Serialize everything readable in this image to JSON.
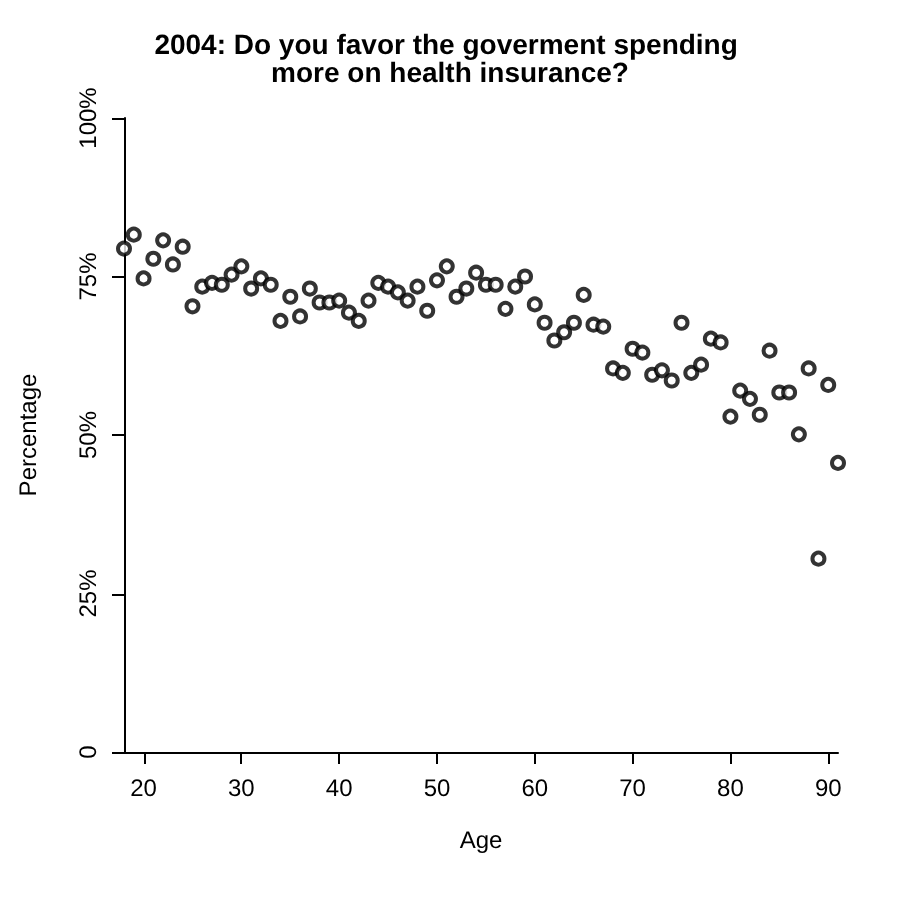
{
  "chart_data": {
    "type": "scatter",
    "title": "2004: Do you favor the goverment spending more on health insurance?",
    "xlabel": "Age",
    "ylabel": "Percentage",
    "marker": "circle",
    "x": [
      18,
      19,
      20,
      21,
      22,
      23,
      24,
      25,
      26,
      27,
      28,
      29,
      30,
      31,
      32,
      33,
      34,
      35,
      36,
      37,
      38,
      39,
      40,
      41,
      42,
      43,
      44,
      45,
      46,
      47,
      48,
      49,
      50,
      51,
      52,
      53,
      54,
      55,
      56,
      57,
      58,
      59,
      60,
      61,
      62,
      63,
      64,
      65,
      66,
      67,
      68,
      69,
      70,
      71,
      72,
      73,
      74,
      75,
      76,
      77,
      78,
      79,
      80,
      81,
      82,
      83,
      84,
      85,
      86,
      87,
      88,
      89,
      90,
      91
    ],
    "series": [
      {
        "color": "#000000",
        "values": [
          79.4,
          81.6,
          74.7,
          77.8,
          80.7,
          76.9,
          79.7,
          70.3,
          73.4,
          74.0,
          73.7,
          75.3,
          76.6,
          73.1,
          74.7,
          73.7,
          68.0,
          71.8,
          68.7,
          73.1,
          70.9,
          70.9,
          71.2,
          69.3,
          68.0,
          71.2,
          74.0,
          73.4,
          72.5,
          71.2,
          73.4,
          69.6,
          74.4,
          76.6,
          71.8,
          73.1,
          75.6,
          73.7,
          73.7,
          69.9,
          73.4,
          75.0,
          70.6,
          67.7,
          64.9,
          66.2,
          67.7,
          72.1,
          67.4,
          67.1,
          60.5,
          59.8,
          63.6,
          63.0,
          59.5,
          60.2,
          58.6,
          67.7,
          59.8,
          61.1,
          65.2,
          64.6,
          52.9,
          57.0,
          55.7,
          53.2,
          63.3,
          56.7,
          56.7,
          50.1,
          60.5,
          30.5,
          57.9,
          45.6
        ]
      }
    ],
    "xlim": [
      18,
      91
    ],
    "xticks": [
      20,
      30,
      40,
      50,
      60,
      70,
      80,
      90
    ],
    "ylim": [
      0,
      100
    ],
    "yticks": [
      {
        "value": 0,
        "label": "0"
      },
      {
        "value": 25,
        "label": "25%"
      },
      {
        "value": 50,
        "label": "50%"
      },
      {
        "value": 75,
        "label": "75%"
      },
      {
        "value": 100,
        "label": "100%"
      }
    ]
  }
}
